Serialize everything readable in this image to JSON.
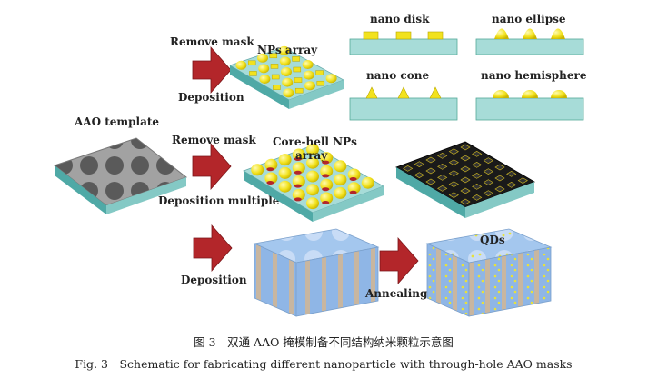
{
  "labels": {
    "aao_template": "AAO template",
    "remove_mask_1": "Remove mask",
    "deposition_1": "Deposition",
    "nps_array": "NPs array",
    "remove_mask_2": "Remove mask",
    "deposition_multiple": "Deposition multiple",
    "core_shell_line1": "Core-hell NPs",
    "core_shell_line2": "array",
    "deposition_2": "Deposition",
    "annealing": "Annealing",
    "qds": "QDs"
  },
  "shapes": {
    "disk": "nano disk",
    "ellipse": "nano ellipse",
    "cone": "nano cone",
    "hemisphere": "nano hemisphere"
  },
  "caption": {
    "chinese": "图 3　双通 AAO 掩模制备不同结构纳米颗粒示意图",
    "english": "Fig. 3　Schematic for fabricating different nanoparticle with through-hole AAO masks"
  },
  "colors": {
    "substrate_top": "#a7dcd8",
    "substrate_side": "#6fbcb8",
    "gold": "#f2e21e",
    "arrow": "#b3262a",
    "mask": "#9a9a9a",
    "dark_mask": "#1e1e1e",
    "film": "#9fc4ec"
  }
}
